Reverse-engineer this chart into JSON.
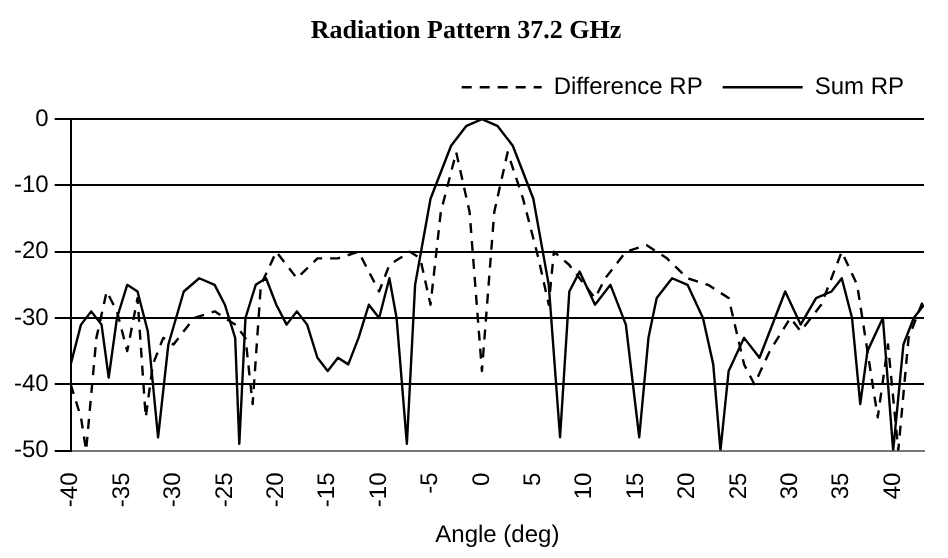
{
  "chart_data": {
    "type": "line",
    "title": "Radiation Pattern 37.2 GHz",
    "xlabel": "Angle (deg)",
    "xlim": [
      -40,
      43
    ],
    "xticks": [
      -40,
      -35,
      -30,
      -25,
      -20,
      -15,
      -10,
      -5,
      0,
      5,
      10,
      15,
      20,
      25,
      30,
      35,
      40
    ],
    "ylim": [
      -50,
      0
    ],
    "yticks": [
      -50,
      -40,
      -30,
      -20,
      -10,
      0
    ],
    "grid": "y",
    "legend": "top right",
    "marker": "none",
    "series": [
      {
        "name": "Difference RP",
        "color": "#000000",
        "line_style": "dashed",
        "x": [
          -40,
          -39,
          -38.5,
          -37.5,
          -36.5,
          -35.5,
          -34.5,
          -33.5,
          -32.7,
          -32,
          -31,
          -30,
          -28,
          -26,
          -25,
          -24,
          -23,
          -22.3,
          -21.5,
          -20,
          -18,
          -16,
          -14,
          -12,
          -10,
          -9,
          -8,
          -7,
          -6,
          -5,
          -4,
          -2.5,
          -1.2,
          0,
          1.2,
          2.5,
          4,
          5.5,
          6.5,
          7,
          8.5,
          10,
          11,
          12,
          14,
          16,
          18,
          20,
          22,
          24,
          25.5,
          26.5,
          28,
          30,
          31,
          33,
          35,
          36.5,
          38,
          38.5,
          39.5,
          40.5,
          41.5,
          43
        ],
        "values": [
          -40,
          -45,
          -50,
          -33,
          -26,
          -29,
          -35,
          -27,
          -45,
          -37,
          -33,
          -34,
          -30,
          -29,
          -30,
          -31,
          -33,
          -43,
          -25,
          -20,
          -24,
          -21,
          -21,
          -20,
          -26,
          -22,
          -21,
          -20,
          -21,
          -28,
          -14,
          -5,
          -14,
          -38,
          -14,
          -5,
          -12,
          -21,
          -28,
          -20,
          -22,
          -25,
          -27,
          -24,
          -20,
          -19,
          -21,
          -24,
          -25,
          -27,
          -37,
          -40,
          -35,
          -30,
          -32,
          -28,
          -20,
          -25,
          -40,
          -45,
          -34,
          -50,
          -33,
          -27
        ]
      },
      {
        "name": "Sum RP",
        "color": "#000000",
        "line_style": "solid",
        "x": [
          -40,
          -39,
          -38,
          -37,
          -36.3,
          -35.5,
          -34.5,
          -33.5,
          -32.5,
          -31.5,
          -30.5,
          -29,
          -27.5,
          -26,
          -25,
          -24,
          -23.6,
          -23,
          -22,
          -21,
          -20,
          -19,
          -18,
          -17,
          -16,
          -15,
          -14,
          -13,
          -12,
          -11,
          -10,
          -9,
          -8.3,
          -7.3,
          -6.5,
          -5,
          -3,
          -1.5,
          0,
          1.5,
          3,
          5,
          6.5,
          7.6,
          8.5,
          9.5,
          11,
          12.5,
          14,
          15.3,
          16.2,
          17,
          18.5,
          20,
          21.5,
          22.5,
          23.2,
          24,
          25.5,
          27,
          28,
          29.5,
          31,
          32.5,
          34,
          35,
          36,
          36.8,
          37.5,
          39,
          40,
          41,
          42,
          43
        ],
        "values": [
          -37,
          -31,
          -29,
          -31,
          -39,
          -30,
          -25,
          -26,
          -32,
          -48,
          -34,
          -26,
          -24,
          -25,
          -28,
          -33,
          -49,
          -30,
          -25,
          -24,
          -28,
          -31,
          -29,
          -31,
          -36,
          -38,
          -36,
          -37,
          -33,
          -28,
          -30,
          -24,
          -30,
          -49,
          -25,
          -12,
          -4,
          -1,
          0,
          -1,
          -4,
          -12,
          -25,
          -48,
          -26,
          -23,
          -28,
          -25,
          -31,
          -48,
          -33,
          -27,
          -24,
          -25,
          -30,
          -37,
          -50,
          -38,
          -33,
          -36,
          -32,
          -26,
          -31,
          -27,
          -26,
          -24,
          -30,
          -43,
          -35,
          -30,
          -50,
          -34,
          -30,
          -28
        ]
      }
    ]
  }
}
